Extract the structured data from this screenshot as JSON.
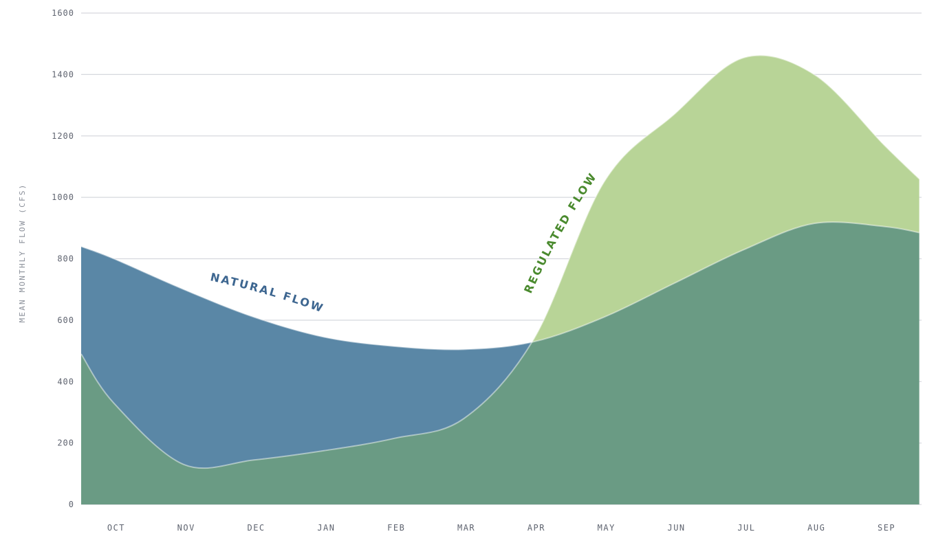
{
  "chart_data": {
    "type": "area",
    "title": "",
    "xlabel": "",
    "ylabel": "MEAN MONTHLY FLOW (CFS)",
    "ylim": [
      0,
      1600
    ],
    "yticks": [
      "0",
      "200",
      "400",
      "600",
      "800",
      "1000",
      "1200",
      "1400",
      "1600"
    ],
    "categories": [
      "OCT",
      "NOV",
      "DEC",
      "JAN",
      "FEB",
      "MAR",
      "APR",
      "MAY",
      "JUN",
      "JUL",
      "AUG",
      "SEP"
    ],
    "grid": true,
    "series": [
      {
        "name": "NATURAL FLOW",
        "x": [
          "OCT 1",
          "OCT 15",
          "NOV 15",
          "DEC 15",
          "JAN 15",
          "FEB 15",
          "MAR 15",
          "APR 15",
          "MAY 15",
          "JUN 15",
          "JUL 15",
          "AUG 15",
          "SEP 15",
          "SEP 30"
        ],
        "values": [
          840,
          800,
          700,
          610,
          545,
          515,
          505,
          530,
          610,
          720,
          830,
          915,
          905,
          885
        ]
      },
      {
        "name": "REGULATED FLOW",
        "x": [
          "OCT 1",
          "OCT 15",
          "NOV 15",
          "DEC 15",
          "JAN 15",
          "FEB 15",
          "MAR 15",
          "APR 15",
          "MAY 15",
          "JUN 15",
          "JUL 15",
          "AUG 15",
          "SEP 15",
          "SEP 30"
        ],
        "values": [
          490,
          330,
          130,
          145,
          175,
          215,
          280,
          540,
          1050,
          1270,
          1455,
          1400,
          1170,
          1060
        ]
      }
    ],
    "colors": {
      "natural": "#5a87a6",
      "regulated_above": "#b8d497",
      "overlap": "#6a9b84",
      "natural_label": "#3d6690",
      "regulated_label": "#4a8a2e"
    }
  }
}
